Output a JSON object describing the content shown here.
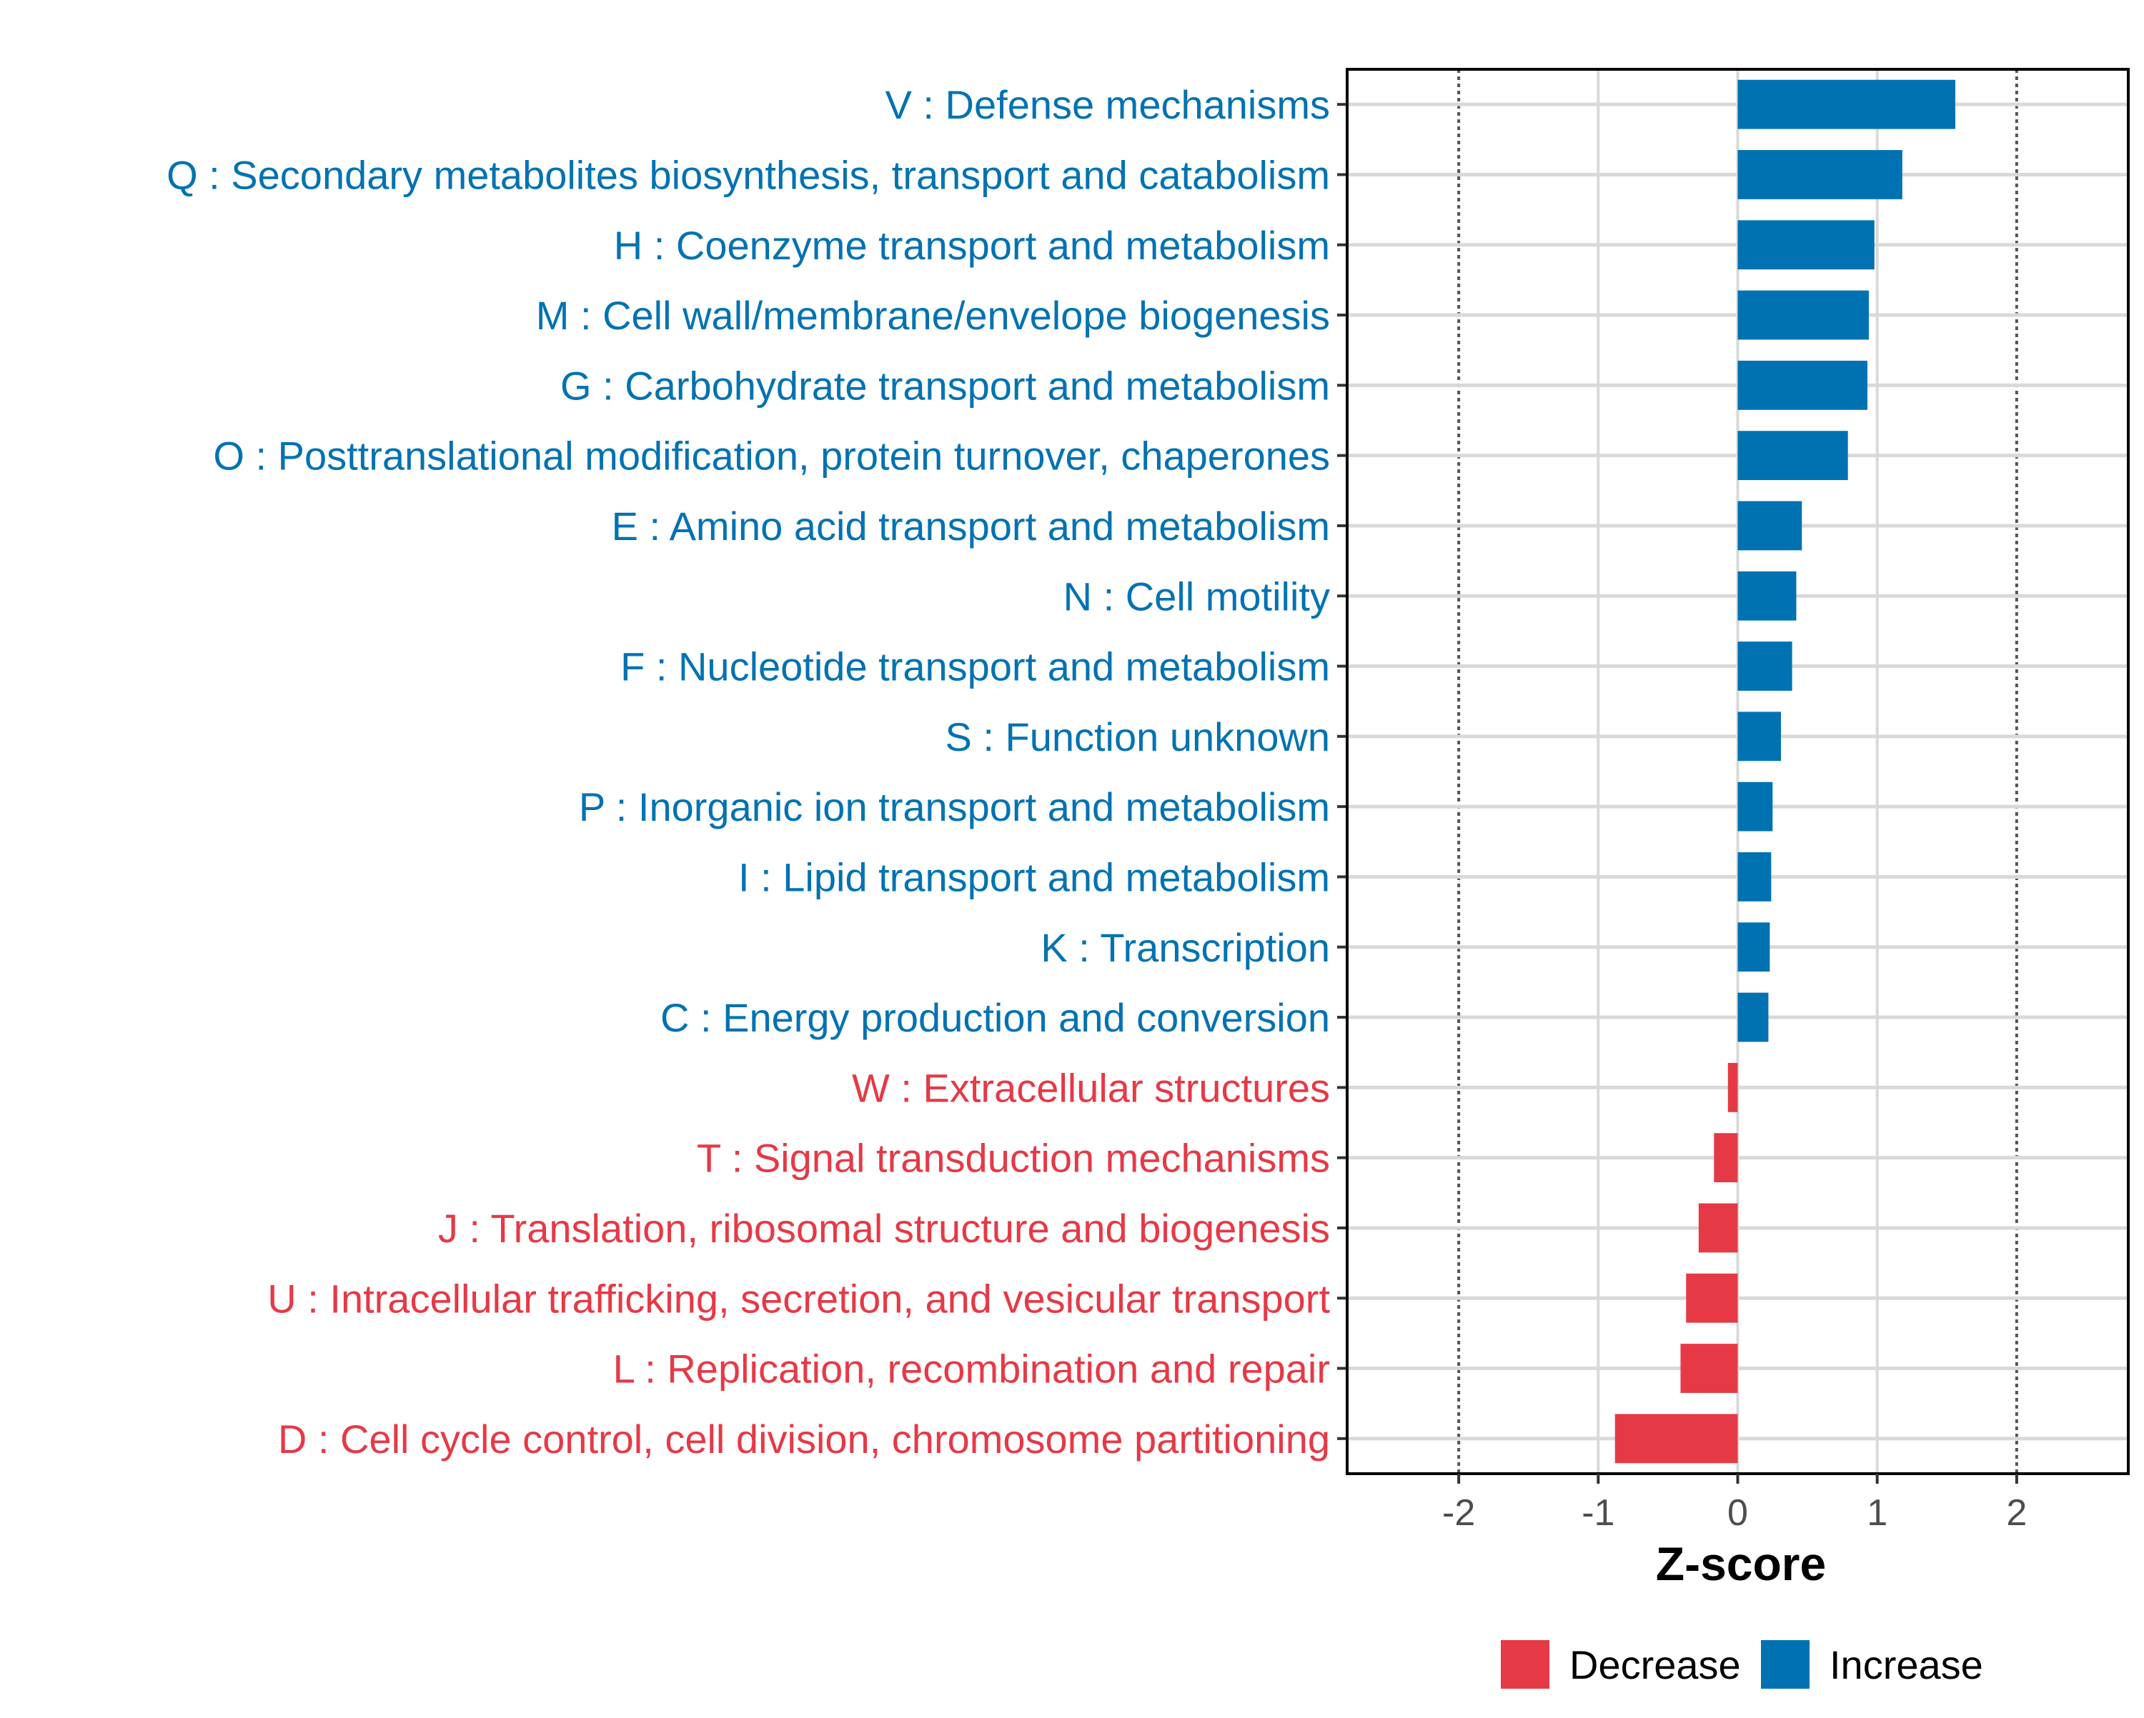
{
  "chart_data": {
    "type": "bar",
    "orientation": "horizontal",
    "xlabel": "Z-score",
    "ylabel": "",
    "xlim": [
      -2.8,
      2.8
    ],
    "x_ticks": [
      -2,
      -1,
      0,
      1,
      2
    ],
    "x_tick_labels": [
      "-2",
      "-1",
      "0",
      "1",
      "2"
    ],
    "reference_lines": [
      -2,
      2
    ],
    "grid": true,
    "legend_position": "bottom",
    "colors": {
      "Increase": "#0072b2",
      "Decrease": "#e63946",
      "grid": "#d9d9d9",
      "ref_line": "#555555",
      "frame": "#000000"
    },
    "legend": [
      {
        "label": "Decrease",
        "color_key": "Decrease"
      },
      {
        "label": "Increase",
        "color_key": "Increase"
      }
    ],
    "categories": [
      "V : Defense mechanisms",
      "Q : Secondary metabolites biosynthesis, transport and catabolism",
      "H : Coenzyme transport and metabolism",
      "M : Cell wall/membrane/envelope biogenesis",
      "G : Carbohydrate transport and metabolism",
      "O : Posttranslational modification, protein turnover, chaperones",
      "E : Amino acid transport and metabolism",
      "N : Cell motility",
      "F : Nucleotide transport and metabolism",
      "S : Function unknown",
      "P : Inorganic ion transport and metabolism",
      "I : Lipid transport and metabolism",
      "K : Transcription",
      "C : Energy production and conversion",
      "W : Extracellular structures",
      "T : Signal transduction mechanisms",
      "J : Translation, ribosomal structure and biogenesis",
      "U : Intracellular trafficking, secretion, and vesicular transport",
      "L : Replication, recombination and repair",
      "D : Cell cycle control, cell division, chromosome partitioning"
    ],
    "values": [
      1.56,
      1.18,
      0.98,
      0.94,
      0.93,
      0.79,
      0.46,
      0.42,
      0.39,
      0.31,
      0.25,
      0.24,
      0.23,
      0.22,
      -0.07,
      -0.17,
      -0.28,
      -0.37,
      -0.41,
      -0.88
    ],
    "groups": [
      "Increase",
      "Increase",
      "Increase",
      "Increase",
      "Increase",
      "Increase",
      "Increase",
      "Increase",
      "Increase",
      "Increase",
      "Increase",
      "Increase",
      "Increase",
      "Increase",
      "Decrease",
      "Decrease",
      "Decrease",
      "Decrease",
      "Decrease",
      "Decrease"
    ]
  }
}
